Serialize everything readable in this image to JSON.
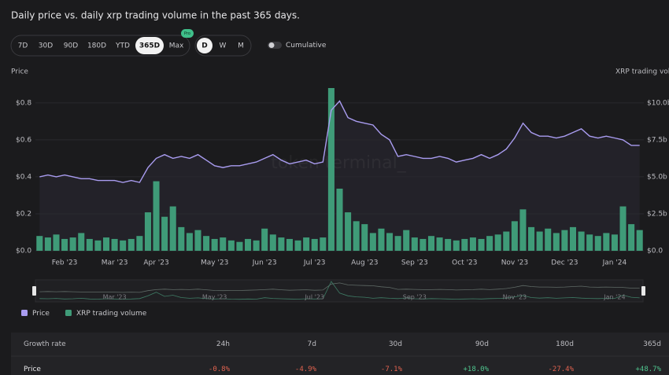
{
  "title": "Daily price vs. daily xrp trading volume in the past 365 days.",
  "controls": {
    "ranges": [
      "7D",
      "30D",
      "90D",
      "180D",
      "YTD",
      "365D",
      "Max"
    ],
    "pro_badge": "Pro",
    "intervals": [
      "D",
      "W",
      "M"
    ],
    "cumulative": "Cumulative"
  },
  "watermark": "token terminal_",
  "chart_data": {
    "type": "line",
    "y_label": "Price",
    "y2_label": "XRP trading volume",
    "categories": [
      null,
      null,
      null,
      "Feb '23",
      null,
      null,
      null,
      null,
      null,
      "Mar '23",
      null,
      null,
      null,
      null,
      "Apr '23",
      null,
      null,
      null,
      null,
      null,
      null,
      "May '23",
      null,
      null,
      null,
      null,
      null,
      "Jun '23",
      null,
      null,
      null,
      null,
      null,
      "Jul '23",
      null,
      null,
      null,
      null,
      null,
      "Aug '23",
      null,
      null,
      null,
      null,
      null,
      "Sep '23",
      null,
      null,
      null,
      null,
      null,
      "Oct '23",
      null,
      null,
      null,
      null,
      null,
      "Nov '23",
      null,
      null,
      null,
      null,
      null,
      "Dec '23",
      null,
      null,
      null,
      null,
      null,
      "Jan '24",
      null,
      null,
      null
    ],
    "series": [
      {
        "name": "Price",
        "type": "line",
        "color": "#a99cf0",
        "values": [
          0.4,
          0.41,
          0.4,
          0.41,
          0.4,
          0.39,
          0.39,
          0.38,
          0.38,
          0.38,
          0.37,
          0.38,
          0.37,
          0.45,
          0.5,
          0.52,
          0.5,
          0.51,
          0.5,
          0.52,
          0.49,
          0.46,
          0.45,
          0.46,
          0.46,
          0.47,
          0.48,
          0.5,
          0.52,
          0.49,
          0.47,
          0.48,
          0.49,
          0.47,
          0.48,
          0.76,
          0.81,
          0.72,
          0.7,
          0.69,
          0.68,
          0.63,
          0.6,
          0.51,
          0.52,
          0.51,
          0.5,
          0.5,
          0.51,
          0.5,
          0.48,
          0.49,
          0.5,
          0.52,
          0.5,
          0.52,
          0.55,
          0.61,
          0.69,
          0.64,
          0.62,
          0.62,
          0.61,
          0.62,
          0.64,
          0.66,
          0.62,
          0.61,
          0.62,
          0.61,
          0.6,
          0.57,
          0.57
        ]
      },
      {
        "name": "XRP trading volume",
        "type": "bar",
        "axis": "y2",
        "color": "#3f9b78",
        "values": [
          1.0,
          0.9,
          1.1,
          0.8,
          0.9,
          1.2,
          0.8,
          0.7,
          0.9,
          0.8,
          0.7,
          0.8,
          1.0,
          2.6,
          4.7,
          2.3,
          3.0,
          1.6,
          1.2,
          1.4,
          1.0,
          0.8,
          0.9,
          0.7,
          0.6,
          0.8,
          0.7,
          1.5,
          1.1,
          0.9,
          0.8,
          0.7,
          0.9,
          0.8,
          0.9,
          11.0,
          4.2,
          2.6,
          2.0,
          1.8,
          1.2,
          1.5,
          1.2,
          1.0,
          1.4,
          0.9,
          0.8,
          1.0,
          0.9,
          0.8,
          0.7,
          0.8,
          0.9,
          0.8,
          1.0,
          1.1,
          1.3,
          2.0,
          2.8,
          1.6,
          1.3,
          1.5,
          1.2,
          1.4,
          1.6,
          1.3,
          1.1,
          1.0,
          1.2,
          1.1,
          3.0,
          1.8,
          1.4
        ]
      }
    ],
    "ylim": [
      0,
      0.88
    ],
    "yticks": [
      {
        "value": 0,
        "label": "$0.0"
      },
      {
        "value": 0.2,
        "label": "$0.2"
      },
      {
        "value": 0.4,
        "label": "$0.4"
      },
      {
        "value": 0.6,
        "label": "$0.6"
      },
      {
        "value": 0.8,
        "label": "$0.8"
      }
    ],
    "y2lim": [
      0,
      11
    ],
    "y2ticks": [
      {
        "value": 0,
        "label": "$0.0"
      },
      {
        "value": 2.5,
        "label": "$2.5b"
      },
      {
        "value": 5,
        "label": "$5.0b"
      },
      {
        "value": 7.5,
        "label": "$7.5b"
      },
      {
        "value": 10,
        "label": "$10.0b"
      }
    ],
    "grid": true,
    "legend": "bottom-left"
  },
  "table": {
    "header": [
      "Growth rate",
      "24h",
      "7d",
      "30d",
      "90d",
      "180d",
      "365d"
    ],
    "rows": [
      [
        "Price",
        "-0.8%",
        "-4.9%",
        "-7.1%",
        "+18.0%",
        "-27.4%",
        "+48.7%"
      ]
    ]
  }
}
